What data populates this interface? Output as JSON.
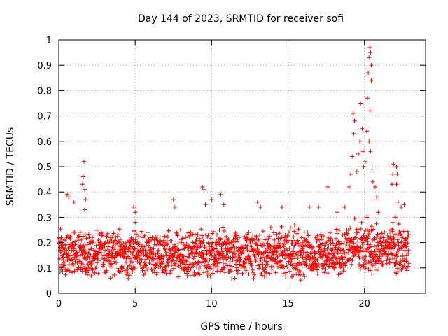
{
  "chart_data": {
    "type": "scatter",
    "title": "Day 144 of 2023, SRMTID for receiver sofi",
    "xlabel": "GPS time / hours",
    "ylabel": "SRMTID / TECUs",
    "xlim": [
      0,
      24
    ],
    "ylim": [
      0,
      1
    ],
    "x_ticks": [
      "0",
      "5",
      "10",
      "15",
      "20"
    ],
    "x_tick_values": [
      0,
      5,
      10,
      15,
      20
    ],
    "y_ticks": [
      "0",
      "0.1",
      "0.2",
      "0.3",
      "0.4",
      "0.5",
      "0.6",
      "0.7",
      "0.8",
      "0.9",
      "1"
    ],
    "y_tick_values": [
      0,
      0.1,
      0.2,
      0.3,
      0.4,
      0.5,
      0.6,
      0.7,
      0.8,
      0.9,
      1
    ],
    "grid": true,
    "marker": "plus",
    "color": "#ff0000",
    "series": [
      {
        "name": "SRMTID",
        "x_range": [
          0,
          22.9
        ],
        "sample_step_hours": 0.0125,
        "baseline_level": 0.15,
        "noise_band": [
          0.05,
          0.26
        ],
        "notable_points": [
          {
            "x": 0.55,
            "y": 0.39
          },
          {
            "x": 0.65,
            "y": 0.38
          },
          {
            "x": 1.0,
            "y": 0.36
          },
          {
            "x": 1.55,
            "y": 0.43
          },
          {
            "x": 1.6,
            "y": 0.46
          },
          {
            "x": 1.65,
            "y": 0.52
          },
          {
            "x": 1.7,
            "y": 0.41
          },
          {
            "x": 1.75,
            "y": 0.37
          },
          {
            "x": 1.7,
            "y": 0.33
          },
          {
            "x": 4.9,
            "y": 0.34
          },
          {
            "x": 5.0,
            "y": 0.32
          },
          {
            "x": 5.0,
            "y": 0.28
          },
          {
            "x": 7.5,
            "y": 0.37
          },
          {
            "x": 7.6,
            "y": 0.34
          },
          {
            "x": 9.4,
            "y": 0.42
          },
          {
            "x": 9.5,
            "y": 0.41
          },
          {
            "x": 9.6,
            "y": 0.35
          },
          {
            "x": 10.0,
            "y": 0.37
          },
          {
            "x": 10.6,
            "y": 0.39
          },
          {
            "x": 10.8,
            "y": 0.35
          },
          {
            "x": 13.0,
            "y": 0.36
          },
          {
            "x": 13.2,
            "y": 0.34
          },
          {
            "x": 14.6,
            "y": 0.34
          },
          {
            "x": 16.4,
            "y": 0.34
          },
          {
            "x": 17.0,
            "y": 0.34
          },
          {
            "x": 17.6,
            "y": 0.42
          },
          {
            "x": 18.2,
            "y": 0.32
          },
          {
            "x": 18.7,
            "y": 0.34
          },
          {
            "x": 19.0,
            "y": 0.42
          },
          {
            "x": 19.1,
            "y": 0.47
          },
          {
            "x": 19.2,
            "y": 0.54
          },
          {
            "x": 19.3,
            "y": 0.63
          },
          {
            "x": 19.25,
            "y": 0.71
          },
          {
            "x": 19.35,
            "y": 0.68
          },
          {
            "x": 19.5,
            "y": 0.48
          },
          {
            "x": 19.6,
            "y": 0.55
          },
          {
            "x": 19.7,
            "y": 0.6
          },
          {
            "x": 19.75,
            "y": 0.75
          },
          {
            "x": 19.85,
            "y": 0.65
          },
          {
            "x": 19.9,
            "y": 0.56
          },
          {
            "x": 19.95,
            "y": 0.5
          },
          {
            "x": 20.05,
            "y": 0.52
          },
          {
            "x": 20.15,
            "y": 0.64
          },
          {
            "x": 20.2,
            "y": 0.77
          },
          {
            "x": 20.25,
            "y": 0.87
          },
          {
            "x": 20.3,
            "y": 0.93
          },
          {
            "x": 20.35,
            "y": 0.97
          },
          {
            "x": 20.4,
            "y": 0.95
          },
          {
            "x": 20.45,
            "y": 0.9
          },
          {
            "x": 20.45,
            "y": 0.84
          },
          {
            "x": 20.35,
            "y": 0.72
          },
          {
            "x": 20.3,
            "y": 0.6
          },
          {
            "x": 20.4,
            "y": 0.56
          },
          {
            "x": 20.5,
            "y": 0.49
          },
          {
            "x": 20.55,
            "y": 0.44
          },
          {
            "x": 20.7,
            "y": 0.42
          },
          {
            "x": 20.8,
            "y": 0.38
          },
          {
            "x": 20.9,
            "y": 0.32
          },
          {
            "x": 21.8,
            "y": 0.43
          },
          {
            "x": 21.85,
            "y": 0.47
          },
          {
            "x": 21.9,
            "y": 0.51
          },
          {
            "x": 22.1,
            "y": 0.5
          },
          {
            "x": 22.15,
            "y": 0.47
          },
          {
            "x": 22.1,
            "y": 0.43
          },
          {
            "x": 22.2,
            "y": 0.36
          },
          {
            "x": 22.4,
            "y": 0.34
          },
          {
            "x": 22.6,
            "y": 0.35
          }
        ]
      }
    ]
  }
}
